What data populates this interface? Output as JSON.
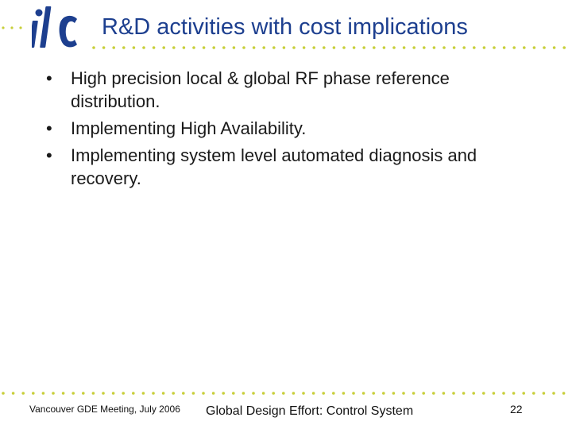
{
  "slide": {
    "logo_text": "ilc",
    "title": "R&D activities with cost implications",
    "bullets": [
      "High precision local & global RF phase reference distribution.",
      "Implementing High Availability.",
      "Implementing system level automated diagnosis and recovery."
    ],
    "footer": {
      "left": "Vancouver GDE Meeting, July 2006",
      "center": "Global Design Effort: Control System",
      "page_number": "22"
    },
    "colors": {
      "title": "#1d3f8f",
      "dots": "#c8cf3a",
      "logo": "#1d3f8f"
    }
  }
}
